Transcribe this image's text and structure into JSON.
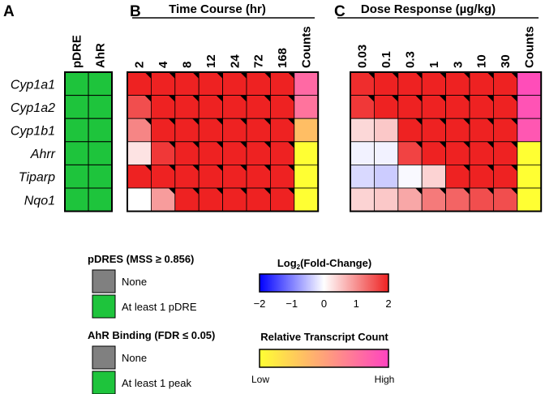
{
  "chart_data": {
    "type": "heatmap",
    "panel_letters": [
      "A",
      "B",
      "C"
    ],
    "genes": [
      "Cyp1a1",
      "Cyp1a2",
      "Cyp1b1",
      "Ahrr",
      "Tiparp",
      "Nqo1"
    ],
    "panel_a": {
      "columns": [
        "pDRE",
        "AhR"
      ],
      "status": [
        [
          "at_least_1",
          "at_least_1"
        ],
        [
          "at_least_1",
          "at_least_1"
        ],
        [
          "at_least_1",
          "at_least_1"
        ],
        [
          "at_least_1",
          "at_least_1"
        ],
        [
          "at_least_1",
          "at_least_1"
        ],
        [
          "at_least_1",
          "at_least_1"
        ]
      ]
    },
    "time_course": {
      "title": "Time Course (hr)",
      "columns": [
        "2",
        "4",
        "8",
        "12",
        "24",
        "72",
        "168"
      ],
      "counts_label": "Counts",
      "log2fc": [
        [
          2,
          2,
          2,
          2,
          2,
          2,
          2
        ],
        [
          1.6,
          2,
          2,
          2,
          2,
          2,
          2
        ],
        [
          1.1,
          2,
          2,
          2,
          2,
          2,
          2
        ],
        [
          0.25,
          1.8,
          2,
          2,
          2,
          2,
          2
        ],
        [
          2,
          2,
          2,
          2,
          2,
          2,
          2
        ],
        [
          0,
          0.9,
          2,
          2,
          2,
          2,
          2
        ]
      ],
      "significant": [
        [
          true,
          true,
          true,
          true,
          true,
          true,
          true
        ],
        [
          true,
          true,
          true,
          true,
          true,
          true,
          true
        ],
        [
          true,
          true,
          true,
          true,
          true,
          true,
          true
        ],
        [
          false,
          true,
          true,
          true,
          true,
          true,
          true
        ],
        [
          true,
          true,
          true,
          true,
          true,
          true,
          true
        ],
        [
          false,
          true,
          true,
          true,
          true,
          true,
          true
        ]
      ],
      "counts": [
        0.8,
        0.75,
        0.35,
        0.0,
        0.0,
        0.0
      ]
    },
    "dose_response": {
      "title": "Dose Response (µg/kg)",
      "columns": [
        "0.03",
        "0.1",
        "0.3",
        "1",
        "3",
        "10",
        "30"
      ],
      "counts_label": "Counts",
      "log2fc": [
        [
          1.9,
          2,
          2,
          2,
          2,
          2,
          2
        ],
        [
          1.8,
          2,
          2,
          2,
          2,
          2,
          2
        ],
        [
          0.35,
          0.5,
          2,
          2,
          2,
          2,
          2
        ],
        [
          -0.1,
          -0.1,
          1.7,
          2,
          2,
          2,
          2
        ],
        [
          -0.3,
          -0.4,
          -0.05,
          0.4,
          2,
          2,
          2
        ],
        [
          0.4,
          0.5,
          0.8,
          1.2,
          1.4,
          1.6,
          1.6
        ]
      ],
      "significant": [
        [
          true,
          true,
          true,
          true,
          true,
          true,
          true
        ],
        [
          true,
          true,
          true,
          true,
          true,
          true,
          true
        ],
        [
          false,
          false,
          true,
          true,
          true,
          true,
          true
        ],
        [
          false,
          false,
          true,
          true,
          true,
          true,
          true
        ],
        [
          false,
          false,
          false,
          false,
          true,
          true,
          true
        ],
        [
          false,
          false,
          true,
          true,
          true,
          true,
          true
        ]
      ],
      "counts": [
        0.95,
        0.92,
        0.9,
        0.0,
        0.0,
        0.0
      ]
    },
    "legend_pdre": {
      "title": "pDRES (MSS ≥ 0.856)",
      "items": [
        {
          "label": "None",
          "color": "#808080"
        },
        {
          "label": "At least 1 pDRE",
          "color": "#1ec43c"
        }
      ]
    },
    "legend_ahr": {
      "title": "AhR Binding (FDR ≤ 0.05)",
      "items": [
        {
          "label": "None",
          "color": "#808080"
        },
        {
          "label": "At least 1 peak",
          "color": "#1ec43c"
        }
      ]
    },
    "colorbar_fc": {
      "title_prefix": "Log",
      "title_sub": "2",
      "title_suffix": "(Fold-Change)",
      "ticks": [
        "−2",
        "−1",
        "0",
        "1",
        "2"
      ],
      "range": [
        -2,
        2
      ],
      "colors": [
        "#0000ff",
        "#ffffff",
        "#ee2222"
      ]
    },
    "colorbar_counts": {
      "title": "Relative Transcript Count",
      "low_label": "Low",
      "high_label": "High",
      "colors": [
        "#ffff33",
        "#ff44c0"
      ]
    },
    "colors": {
      "green": "#1ec43c",
      "red_max": "#ee2222",
      "blue_max": "#0000ff",
      "count_low": "#ffff33",
      "count_high": "#ff44c0"
    }
  }
}
